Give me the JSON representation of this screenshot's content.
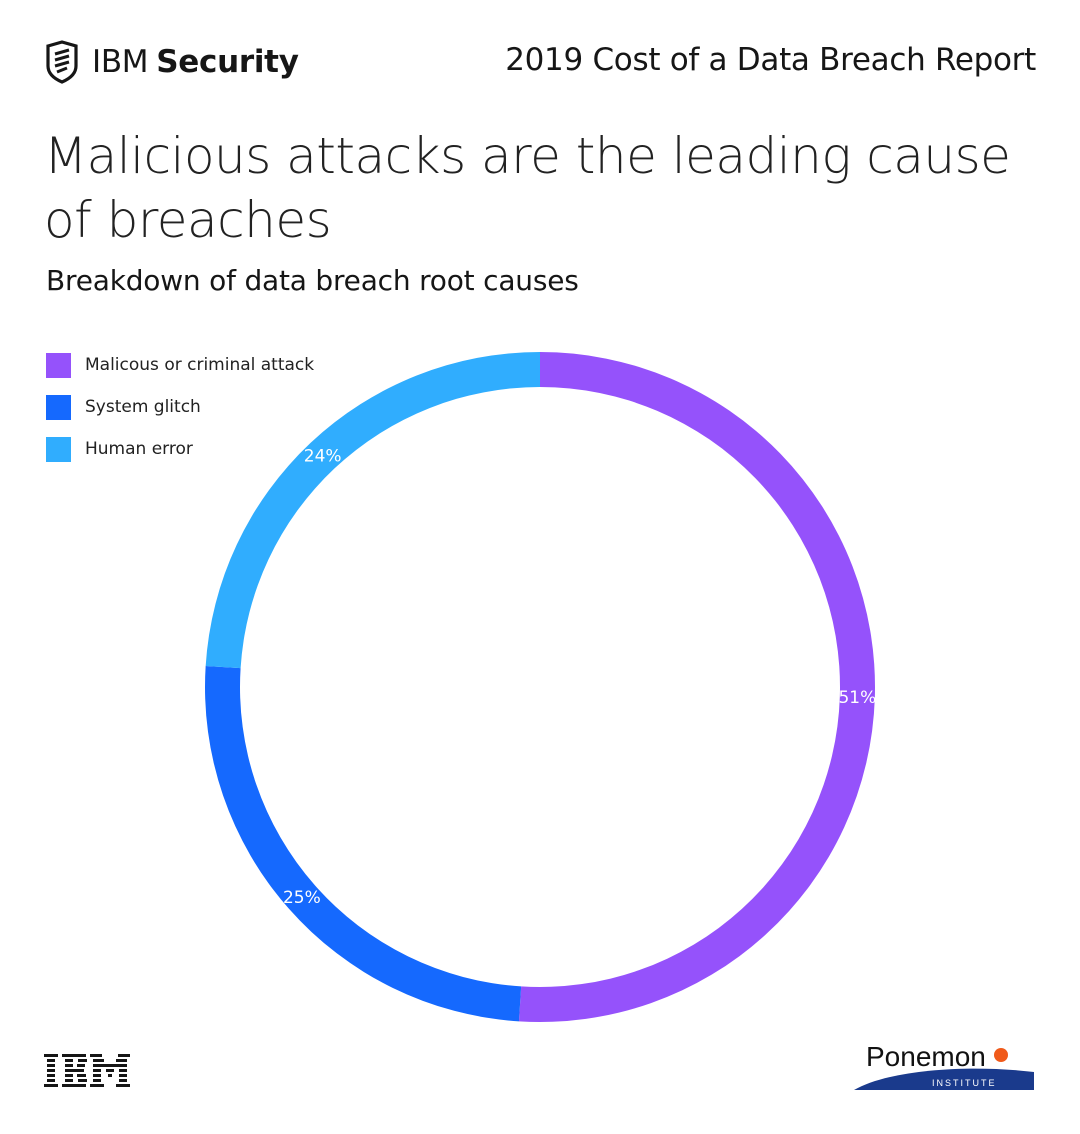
{
  "header": {
    "brand_light": "IBM",
    "brand_bold": "Security",
    "report_title": "2019 Cost of a Data Breach Report"
  },
  "page": {
    "title": "Malicious attacks are the leading cause of breaches",
    "subtitle": "Breakdown of data breach root causes"
  },
  "colors": {
    "malicious": "#9552fb",
    "system": "#1569fe",
    "human": "#30adfe"
  },
  "chart_data": {
    "type": "pie",
    "variant": "donut",
    "title": "Breakdown of data breach root causes",
    "legend_position": "top-left",
    "series": [
      {
        "name": "Malicous or criminal attack",
        "value": 51,
        "label": "51%",
        "color": "#9552fb"
      },
      {
        "name": "System glitch",
        "value": 25,
        "label": "25%",
        "color": "#1569fe"
      },
      {
        "name": "Human error",
        "value": 24,
        "label": "24%",
        "color": "#30adfe"
      }
    ]
  },
  "footer": {
    "left_logo": "IBM",
    "right_logo_main": "Ponemon",
    "right_logo_sub": "INSTITUTE"
  }
}
